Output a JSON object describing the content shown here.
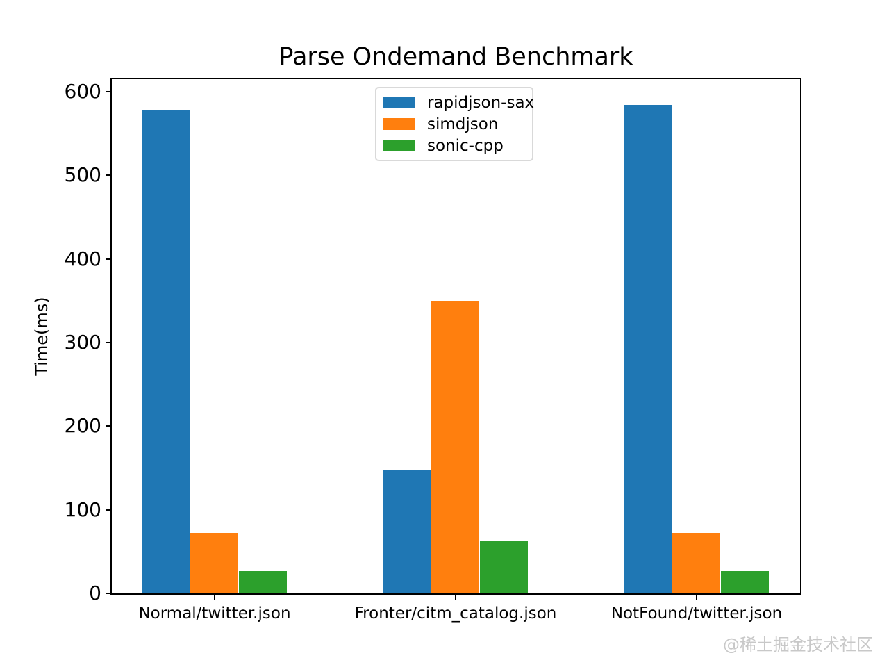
{
  "chart_data": {
    "type": "bar",
    "title": "Parse Ondemand Benchmark",
    "xlabel": "",
    "ylabel": "Time(ms)",
    "categories": [
      "Normal/twitter.json",
      "Fronter/citm_catalog.json",
      "NotFound/twitter.json"
    ],
    "series": [
      {
        "name": "rapidjson-sax",
        "color": "#1f77b4",
        "values": [
          578,
          148,
          584
        ]
      },
      {
        "name": "simdjson",
        "color": "#ff7f0e",
        "values": [
          72,
          350,
          72
        ]
      },
      {
        "name": "sonic-cpp",
        "color": "#2ca02c",
        "values": [
          27,
          62,
          27
        ]
      }
    ],
    "ylim": [
      0,
      615
    ],
    "yticks": [
      0,
      100,
      200,
      300,
      400,
      500,
      600
    ],
    "grid": false,
    "legend_position": "upper center",
    "axis_color": "#000000",
    "background_color": "#ffffff"
  },
  "watermark": "@稀土掘金技术社区"
}
